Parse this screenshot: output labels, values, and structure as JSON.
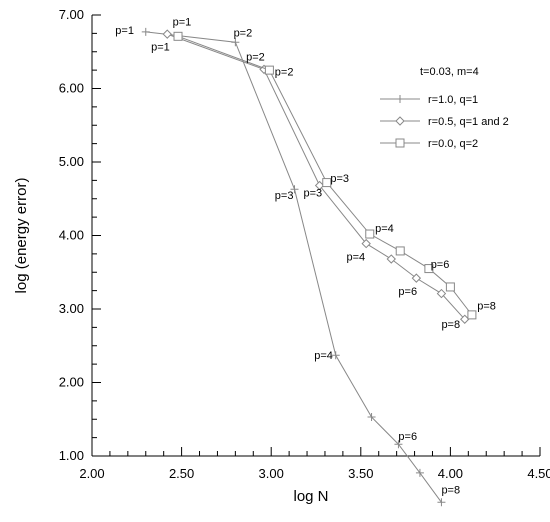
{
  "chart_data": {
    "type": "line",
    "title": "",
    "xlabel": "log N",
    "ylabel": "log (energy error)",
    "xlim": [
      2.0,
      4.5
    ],
    "ylim": [
      1.0,
      7.0
    ],
    "xticks": [
      "2.00",
      "2.50",
      "3.00",
      "3.50",
      "4.00",
      "4.50"
    ],
    "yticks": [
      "1.00",
      "2.00",
      "3.00",
      "4.00",
      "5.00",
      "6.00",
      "7.00"
    ],
    "grid": false,
    "legend_title": "t=0.03, m=4",
    "legend_position": "upper-right",
    "series": [
      {
        "name": "r=1.0, q=1",
        "marker": "plus",
        "x": [
          2.3,
          2.8,
          3.13,
          3.36,
          3.56,
          3.71,
          3.83,
          3.95
        ],
        "y": [
          6.77,
          6.63,
          4.63,
          2.37,
          1.53,
          1.16,
          0.77,
          0.37
        ]
      },
      {
        "name": "r=0.5, q=1 and 2",
        "marker": "diamond",
        "x": [
          2.42,
          2.96,
          3.27,
          3.53,
          3.67,
          3.81,
          3.95,
          4.08
        ],
        "y": [
          6.74,
          6.26,
          4.68,
          3.89,
          3.68,
          3.42,
          3.21,
          2.86
        ]
      },
      {
        "name": "r=0.0, q=2",
        "marker": "square",
        "x": [
          2.48,
          2.99,
          3.31,
          3.55,
          3.72,
          3.88,
          4.0,
          4.12
        ],
        "y": [
          6.71,
          6.25,
          4.72,
          4.02,
          3.79,
          3.55,
          3.3,
          2.92
        ]
      }
    ],
    "annotations": [
      {
        "text": "p=1",
        "x": 2.13,
        "y": 6.74
      },
      {
        "text": "p=1",
        "x": 2.45,
        "y": 6.86
      },
      {
        "text": "p=1",
        "x": 2.33,
        "y": 6.52
      },
      {
        "text": "p=2",
        "x": 2.79,
        "y": 6.71
      },
      {
        "text": "p=2",
        "x": 2.86,
        "y": 6.38
      },
      {
        "text": "p=2",
        "x": 3.02,
        "y": 6.18
      },
      {
        "text": "p=3",
        "x": 3.02,
        "y": 4.5
      },
      {
        "text": "p=3",
        "x": 3.18,
        "y": 4.53
      },
      {
        "text": "p=3",
        "x": 3.33,
        "y": 4.73
      },
      {
        "text": "p=4",
        "x": 3.58,
        "y": 4.05
      },
      {
        "text": "p=4",
        "x": 3.42,
        "y": 3.66
      },
      {
        "text": "p=4",
        "x": 3.24,
        "y": 2.32
      },
      {
        "text": "p=6",
        "x": 3.89,
        "y": 3.56
      },
      {
        "text": "p=6",
        "x": 3.71,
        "y": 3.19
      },
      {
        "text": "p=6",
        "x": 3.71,
        "y": 1.22
      },
      {
        "text": "p=8",
        "x": 4.15,
        "y": 2.99
      },
      {
        "text": "p=8",
        "x": 3.95,
        "y": 2.74
      },
      {
        "text": "p=8",
        "x": 3.95,
        "y": 0.49
      }
    ]
  }
}
